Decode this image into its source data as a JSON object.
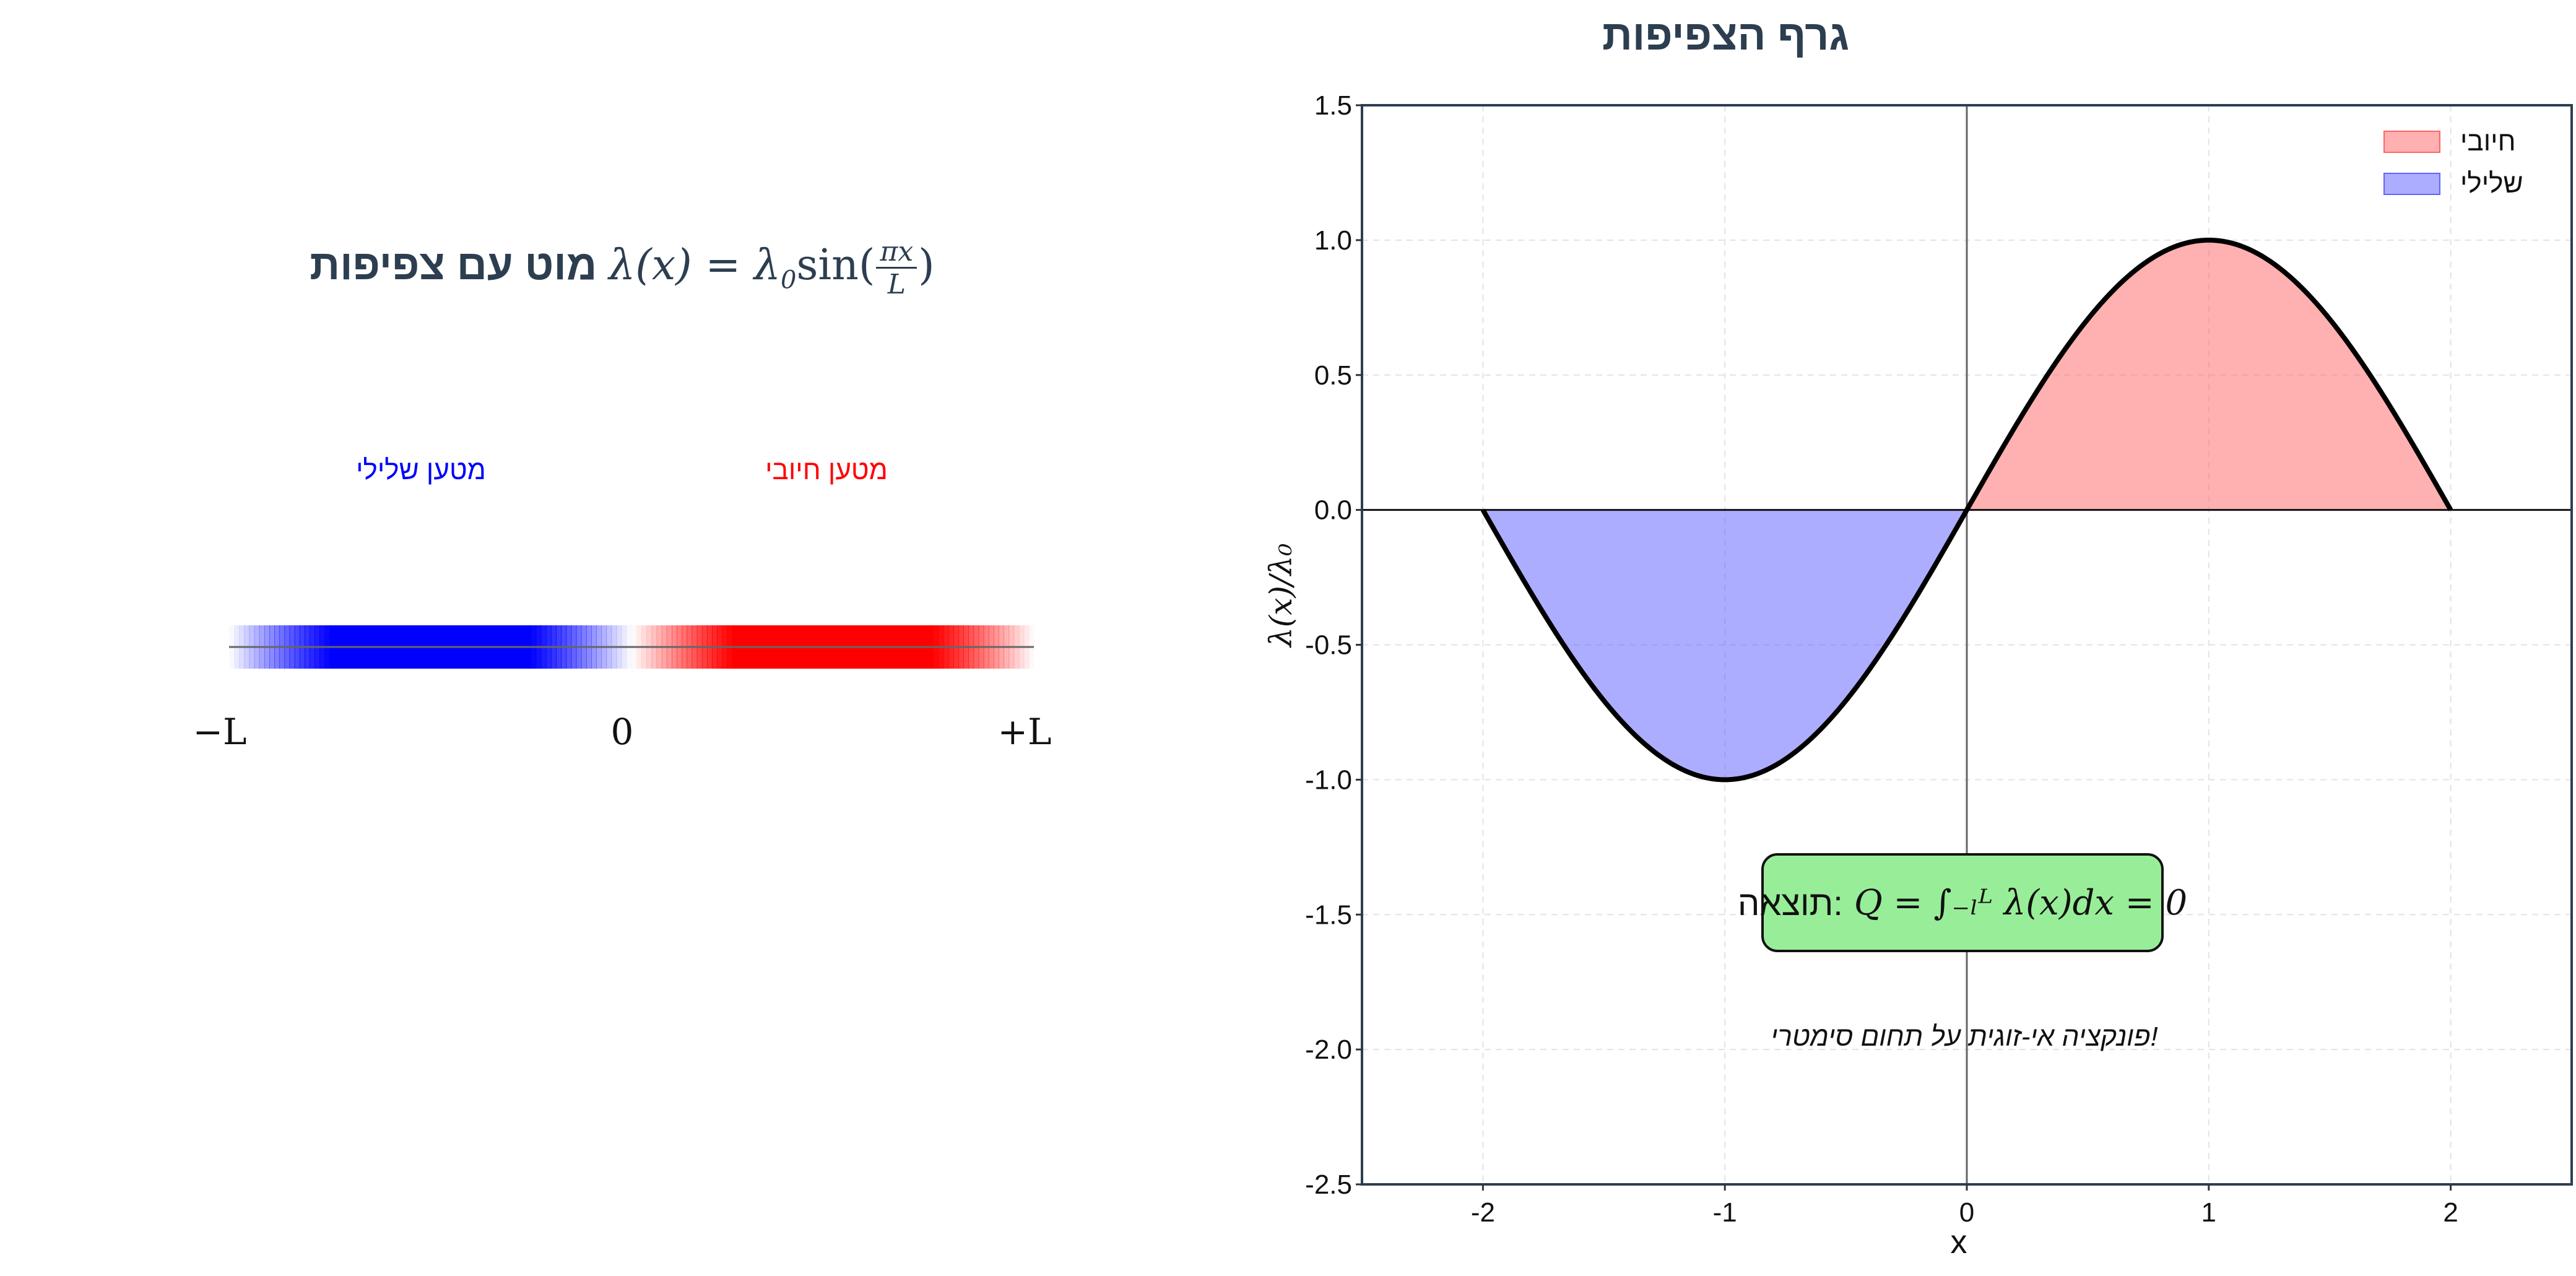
{
  "left_panel": {
    "title_text": "מוט עם צפיפות",
    "title_formula_prefix": "λ(x) = λ",
    "title_formula_sub": "0",
    "title_formula_sin": "sin(",
    "title_formula_frac_num": "πx",
    "title_formula_frac_den": "L",
    "title_formula_close": ")",
    "negative_label": "מטען שלילי",
    "positive_label": "מטען חיובי",
    "negative_color": "#0000ff",
    "positive_color": "#ff0000",
    "tick_left": "−L",
    "tick_center": "0",
    "tick_right": "+L"
  },
  "chart_data": {
    "type": "area",
    "title": "גרף הצפיפות",
    "xlabel": "x",
    "ylabel": "λ(x)/λ₀",
    "xlim": [
      -2.5,
      2.5
    ],
    "ylim": [
      -2.5,
      1.5
    ],
    "xticks": [
      -2,
      -1,
      0,
      1,
      2
    ],
    "yticks": [
      1.5,
      1.0,
      0.5,
      0.0,
      -0.5,
      -1.0,
      -1.5,
      -2.0,
      -2.5
    ],
    "grid": true,
    "legend_position": "top-right",
    "function": "sin(pi*x/2)",
    "x": [
      -2,
      -1.75,
      -1.5,
      -1.25,
      -1,
      -0.75,
      -0.5,
      -0.25,
      0,
      0.25,
      0.5,
      0.75,
      1,
      1.25,
      1.5,
      1.75,
      2
    ],
    "y": [
      0,
      -0.383,
      -0.707,
      -0.924,
      -1,
      -0.924,
      -0.707,
      -0.383,
      0,
      0.383,
      0.707,
      0.924,
      1,
      0.924,
      0.707,
      0.383,
      0
    ],
    "series": [
      {
        "name": "חיובי",
        "domain": [
          0,
          2
        ],
        "color": "#ff6f6f"
      },
      {
        "name": "שלילי",
        "domain": [
          -2,
          0
        ],
        "color": "#6a6aff"
      }
    ],
    "annotations": {
      "result_label": "תוצאה:",
      "result_formula": "Q = ∫₋ₗᴸ λ(x)dx = 0",
      "note": "פונקציה אי-זוגית על תחום סימטרי!"
    }
  }
}
